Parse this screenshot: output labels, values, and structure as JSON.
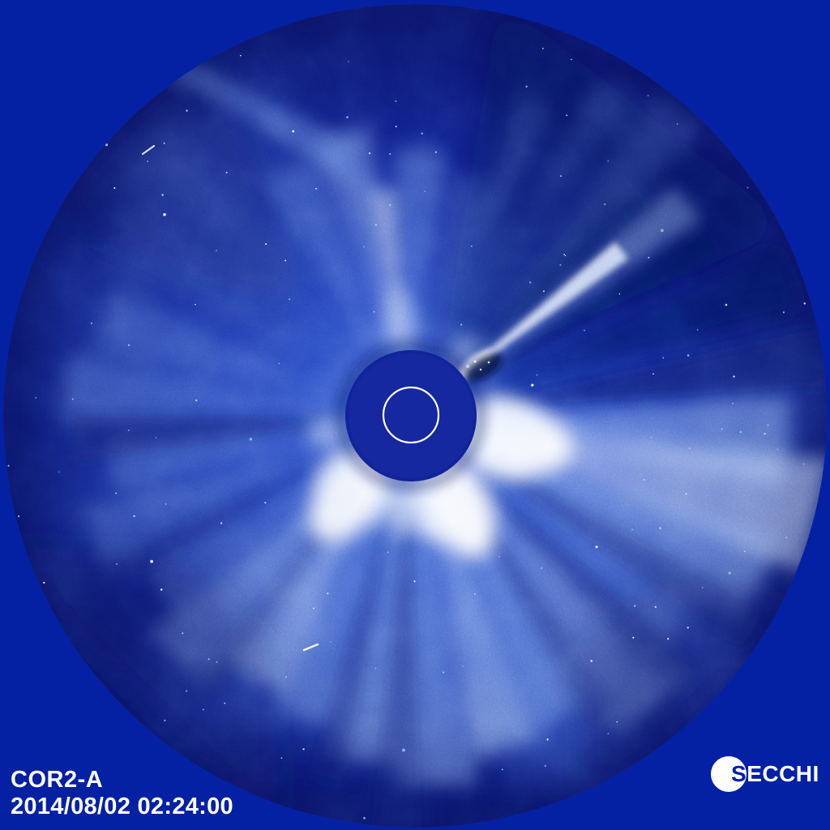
{
  "overlay": {
    "instrument_label": "COR2-A",
    "timestamp": "2014/08/02 02:24:00",
    "logo_text": "SECCHI"
  },
  "colors": {
    "background": "#0421a4",
    "field_dark": "#0a1468",
    "field_mid": "#1c3abc",
    "field_light": "#4f7ce6",
    "streamer_bright": "#ffffff",
    "occulter": "#15289f",
    "sun_circle": "#ffffff",
    "overlay_text": "#ffffff",
    "logo_circle": "#ffffff"
  }
}
